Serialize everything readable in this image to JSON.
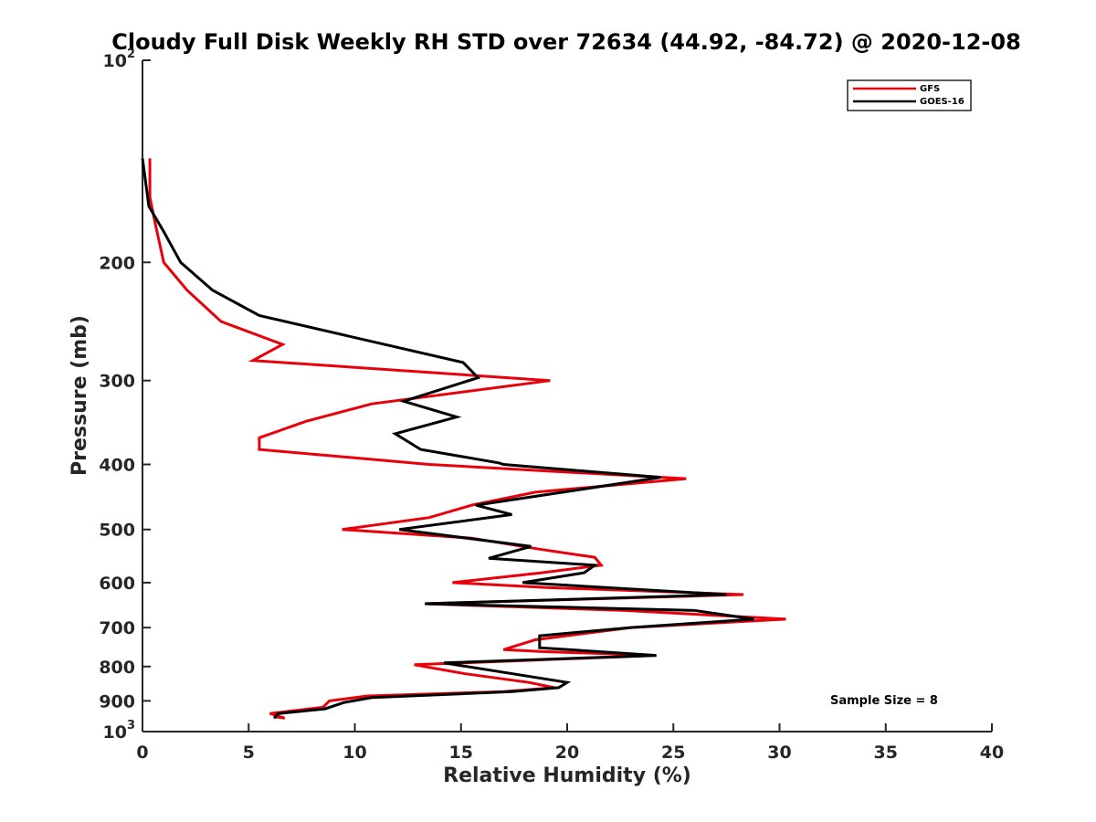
{
  "chart_data": {
    "type": "line",
    "title": "Cloudy Full Disk Weekly RH STD over 72634 (44.92, -84.72) @ 2020-12-08",
    "xlabel": "Relative Humidity (%)",
    "ylabel": "Pressure (mb)",
    "xlim": [
      0,
      40
    ],
    "ylim": [
      100,
      1000
    ],
    "y_scale": "log",
    "y_reversed": true,
    "grid": false,
    "legend_position": "top-right",
    "xticks": [
      0,
      5,
      10,
      15,
      20,
      25,
      30,
      35,
      40
    ],
    "xtick_labels": [
      "0",
      "5",
      "10",
      "15",
      "20",
      "25",
      "30",
      "35",
      "40"
    ],
    "yticks": [
      100,
      200,
      300,
      400,
      500,
      600,
      700,
      800,
      900,
      1000
    ],
    "ytick_labels": [
      {
        "base": "10",
        "exp": "2"
      },
      {
        "base": "200",
        "exp": ""
      },
      {
        "base": "300",
        "exp": ""
      },
      {
        "base": "400",
        "exp": ""
      },
      {
        "base": "500",
        "exp": ""
      },
      {
        "base": "600",
        "exp": ""
      },
      {
        "base": "700",
        "exp": ""
      },
      {
        "base": "800",
        "exp": ""
      },
      {
        "base": "900",
        "exp": ""
      },
      {
        "base": "10",
        "exp": "3"
      }
    ],
    "annotation": "Sample Size = 8",
    "series": [
      {
        "name": "GFS",
        "color": "#e8000b",
        "points": [
          [
            0.35,
            140
          ],
          [
            0.35,
            160
          ],
          [
            0.6,
            175
          ],
          [
            1.0,
            200
          ],
          [
            2.1,
            220
          ],
          [
            3.7,
            245
          ],
          [
            6.6,
            265
          ],
          [
            5.2,
            280
          ],
          [
            19.2,
            300
          ],
          [
            10.8,
            325
          ],
          [
            7.7,
            345
          ],
          [
            5.5,
            365
          ],
          [
            5.5,
            380
          ],
          [
            13.5,
            400
          ],
          [
            25.6,
            420
          ],
          [
            18.5,
            440
          ],
          [
            15.5,
            460
          ],
          [
            13.5,
            480
          ],
          [
            9.4,
            500
          ],
          [
            15.5,
            515
          ],
          [
            18.7,
            535
          ],
          [
            21.3,
            550
          ],
          [
            21.6,
            565
          ],
          [
            18.8,
            580
          ],
          [
            14.6,
            600
          ],
          [
            19.0,
            610
          ],
          [
            28.3,
            625
          ],
          [
            13.3,
            645
          ],
          [
            22.7,
            660
          ],
          [
            30.3,
            680
          ],
          [
            23.0,
            700
          ],
          [
            18.5,
            730
          ],
          [
            17.0,
            755
          ],
          [
            18.8,
            760
          ],
          [
            24.2,
            770
          ],
          [
            12.8,
            795
          ],
          [
            15.2,
            820
          ],
          [
            18.2,
            845
          ],
          [
            19.4,
            860
          ],
          [
            17.0,
            872
          ],
          [
            10.6,
            885
          ],
          [
            8.8,
            900
          ],
          [
            8.5,
            920
          ],
          [
            6.0,
            940
          ],
          [
            6.7,
            955
          ],
          [
            6.2,
            950
          ]
        ]
      },
      {
        "name": "GOES-16",
        "color": "#000000",
        "points": [
          [
            0.0,
            140
          ],
          [
            0.3,
            165
          ],
          [
            1.0,
            180
          ],
          [
            1.8,
            200
          ],
          [
            3.3,
            220
          ],
          [
            5.5,
            240
          ],
          [
            15.1,
            282
          ],
          [
            15.8,
            297
          ],
          [
            12.3,
            322
          ],
          [
            14.8,
            340
          ],
          [
            11.9,
            360
          ],
          [
            13.1,
            380
          ],
          [
            16.8,
            398
          ],
          [
            17.0,
            400
          ],
          [
            24.4,
            418
          ],
          [
            19.8,
            440
          ],
          [
            15.7,
            460
          ],
          [
            17.4,
            475
          ],
          [
            12.1,
            500
          ],
          [
            18.3,
            530
          ],
          [
            16.3,
            552
          ],
          [
            21.3,
            565
          ],
          [
            20.8,
            580
          ],
          [
            17.9,
            600
          ],
          [
            27.5,
            625
          ],
          [
            13.3,
            645
          ],
          [
            26.0,
            660
          ],
          [
            28.8,
            680
          ],
          [
            23.0,
            700
          ],
          [
            18.7,
            720
          ],
          [
            18.7,
            750
          ],
          [
            24.2,
            770
          ],
          [
            14.2,
            790
          ],
          [
            20.0,
            845
          ],
          [
            19.6,
            860
          ],
          [
            17.4,
            872
          ],
          [
            10.8,
            890
          ],
          [
            9.5,
            905
          ],
          [
            8.6,
            925
          ],
          [
            6.4,
            940
          ],
          [
            6.2,
            955
          ]
        ]
      }
    ]
  }
}
